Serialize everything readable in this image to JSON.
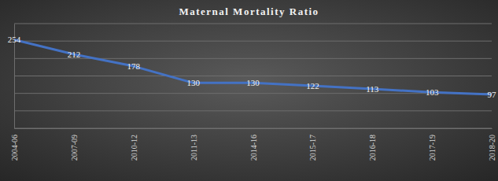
{
  "chart_data": {
    "type": "line",
    "title": "Maternal Mortality Ratio",
    "categories": [
      "2004-06",
      "2007-09",
      "2010-12",
      "2011-13",
      "2014-16",
      "2015-17",
      "2016-18",
      "2017-19",
      "2018-20"
    ],
    "values": [
      254,
      212,
      178,
      130,
      130,
      122,
      113,
      103,
      97
    ],
    "color": "#4472c4",
    "ylim": [
      0,
      300
    ],
    "yticks": [
      0,
      50,
      100,
      150,
      200,
      250,
      300
    ],
    "grid": true,
    "data_labels": true,
    "tick_labels": "x"
  }
}
